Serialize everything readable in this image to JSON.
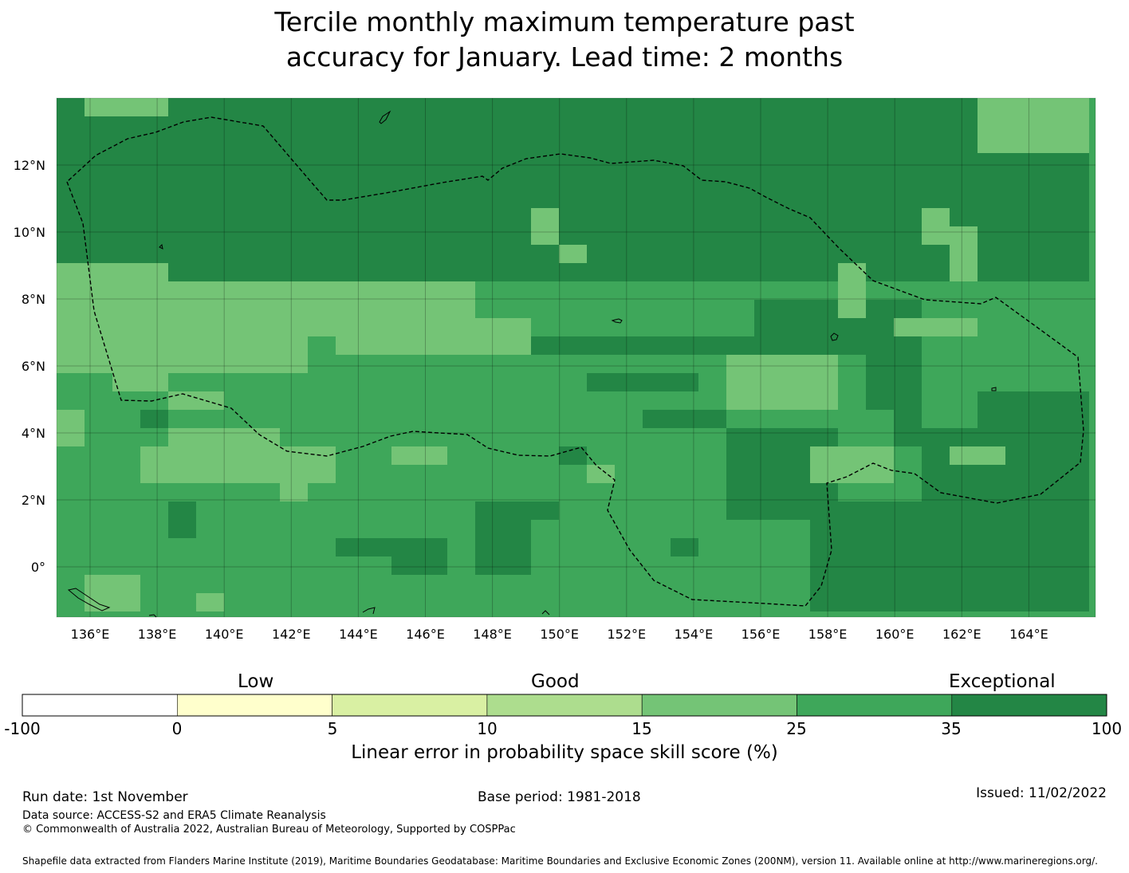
{
  "title": {
    "line1": "Tercile monthly maximum temperature past",
    "line2": "accuracy for January. Lead time: 2 months"
  },
  "map": {
    "lon_labels": [
      "136°E",
      "138°E",
      "140°E",
      "142°E",
      "144°E",
      "146°E",
      "148°E",
      "150°E",
      "152°E",
      "154°E",
      "156°E",
      "158°E",
      "160°E",
      "162°E",
      "164°E"
    ],
    "lat_labels": [
      "12°N",
      "10°N",
      "8°N",
      "6°N",
      "4°N",
      "2°N",
      "0°"
    ],
    "colors": {
      "c25_35": "#3ea75a",
      "c35_100": "#238645",
      "c15_25": "#74c476",
      "c10_15": "#addd8e"
    }
  },
  "colorbar": {
    "headings": {
      "low": "Low",
      "good": "Good",
      "exceptional": "Exceptional"
    },
    "ticks": [
      "-100",
      "0",
      "5",
      "10",
      "15",
      "25",
      "35",
      "100"
    ],
    "colors": [
      "#ffffff",
      "#ffffcc",
      "#d9f0a3",
      "#addd8e",
      "#74c476",
      "#3ea75a",
      "#238645"
    ],
    "label": "Linear error in probability space skill score (%)"
  },
  "footer": {
    "run_date": "Run date: 1st November",
    "base_period": "Base period: 1981-2018",
    "issued": "Issued: 11/02/2022",
    "data_source": "Data source: ACCESS-S2 and ERA5 Climate Reanalysis",
    "copyright": "© Commonwealth of Australia 2022, Australian Bureau of Meteorology, Supported by COSPPac",
    "shapefile": "Shapefile data extracted from Flanders Marine Institute (2019), Maritime Boundaries Geodatabase: Maritime Boundaries and Exclusive Economic Zones (200NM), version 11. Available online at http://www.marineregions.org/."
  }
}
